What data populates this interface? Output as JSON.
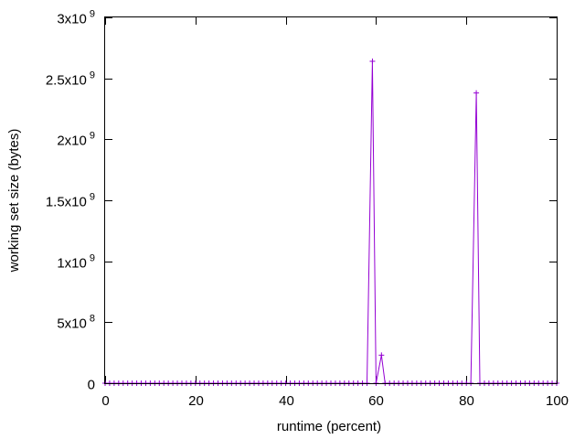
{
  "chart_data": {
    "type": "line",
    "title": "",
    "xlabel": "runtime (percent)",
    "ylabel": "working set size (bytes)",
    "xlim": [
      0,
      100
    ],
    "ylim": [
      0,
      3000000000
    ],
    "x_ticks": [
      {
        "value": 0,
        "label": "0"
      },
      {
        "value": 20,
        "label": "20"
      },
      {
        "value": 40,
        "label": "40"
      },
      {
        "value": 60,
        "label": "60"
      },
      {
        "value": 80,
        "label": "80"
      },
      {
        "value": 100,
        "label": "100"
      }
    ],
    "y_ticks": [
      {
        "value": 0,
        "mant": "0",
        "exp": ""
      },
      {
        "value": 500000000,
        "mant": "5x10",
        "exp": "8"
      },
      {
        "value": 1000000000,
        "mant": "1x10",
        "exp": "9"
      },
      {
        "value": 1500000000,
        "mant": "1.5x10",
        "exp": "9"
      },
      {
        "value": 2000000000,
        "mant": "2x10",
        "exp": "9"
      },
      {
        "value": 2500000000,
        "mant": "2.5x10",
        "exp": "9"
      },
      {
        "value": 3000000000,
        "mant": "3x10",
        "exp": "9"
      }
    ],
    "grid": false,
    "series_color": "#9400d3",
    "series": [
      {
        "marker": "plus",
        "points": [
          [
            0,
            0
          ],
          [
            1,
            0
          ],
          [
            2,
            0
          ],
          [
            3,
            0
          ],
          [
            4,
            0
          ],
          [
            5,
            0
          ],
          [
            6,
            0
          ],
          [
            7,
            0
          ],
          [
            8,
            0
          ],
          [
            9,
            0
          ],
          [
            10,
            0
          ],
          [
            11,
            0
          ],
          [
            12,
            0
          ],
          [
            13,
            0
          ],
          [
            14,
            0
          ],
          [
            15,
            0
          ],
          [
            16,
            0
          ],
          [
            17,
            0
          ],
          [
            18,
            0
          ],
          [
            19,
            0
          ],
          [
            20,
            0
          ],
          [
            21,
            0
          ],
          [
            22,
            0
          ],
          [
            23,
            0
          ],
          [
            24,
            0
          ],
          [
            25,
            0
          ],
          [
            26,
            0
          ],
          [
            27,
            0
          ],
          [
            28,
            0
          ],
          [
            29,
            0
          ],
          [
            30,
            0
          ],
          [
            31,
            0
          ],
          [
            32,
            0
          ],
          [
            33,
            0
          ],
          [
            34,
            0
          ],
          [
            35,
            0
          ],
          [
            36,
            0
          ],
          [
            37,
            0
          ],
          [
            38,
            0
          ],
          [
            39,
            0
          ],
          [
            40,
            0
          ],
          [
            41,
            0
          ],
          [
            42,
            0
          ],
          [
            43,
            0
          ],
          [
            44,
            0
          ],
          [
            45,
            0
          ],
          [
            46,
            0
          ],
          [
            47,
            0
          ],
          [
            48,
            0
          ],
          [
            49,
            0
          ],
          [
            50,
            0
          ],
          [
            51,
            0
          ],
          [
            52,
            0
          ],
          [
            53,
            0
          ],
          [
            54,
            0
          ],
          [
            55,
            0
          ],
          [
            56,
            0
          ],
          [
            57,
            0
          ],
          [
            58,
            0
          ],
          [
            59.2,
            2640000000
          ],
          [
            60,
            0
          ],
          [
            61.2,
            230000000
          ],
          [
            62,
            0
          ],
          [
            63,
            0
          ],
          [
            64,
            0
          ],
          [
            65,
            0
          ],
          [
            66,
            0
          ],
          [
            67,
            0
          ],
          [
            68,
            0
          ],
          [
            69,
            0
          ],
          [
            70,
            0
          ],
          [
            71,
            0
          ],
          [
            72,
            0
          ],
          [
            73,
            0
          ],
          [
            74,
            0
          ],
          [
            75,
            0
          ],
          [
            76,
            0
          ],
          [
            77,
            0
          ],
          [
            78,
            0
          ],
          [
            79,
            0
          ],
          [
            80,
            0
          ],
          [
            81,
            0
          ],
          [
            82.2,
            2380000000
          ],
          [
            83,
            0
          ],
          [
            84,
            0
          ],
          [
            85,
            0
          ],
          [
            86,
            0
          ],
          [
            87,
            0
          ],
          [
            88,
            0
          ],
          [
            89,
            0
          ],
          [
            90,
            0
          ],
          [
            91,
            0
          ],
          [
            92,
            0
          ],
          [
            93,
            0
          ],
          [
            94,
            0
          ],
          [
            95,
            0
          ],
          [
            96,
            0
          ],
          [
            97,
            0
          ],
          [
            98,
            0
          ],
          [
            99,
            0
          ],
          [
            100,
            0
          ]
        ]
      }
    ]
  }
}
